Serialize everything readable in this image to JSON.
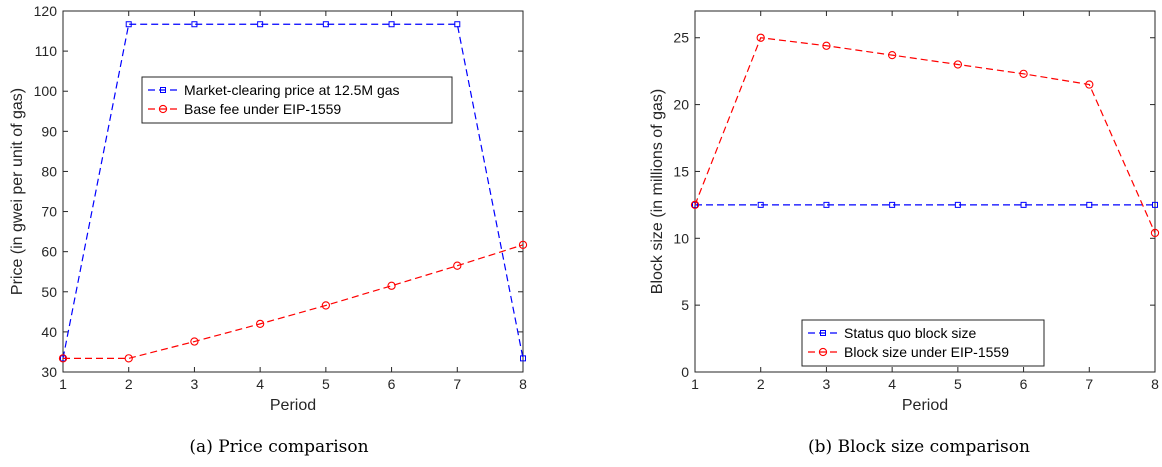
{
  "colors": {
    "blue": "#0000ff",
    "red": "#ff0000",
    "axis": "#262626"
  },
  "chart_data": [
    {
      "type": "line",
      "caption": "(a)  Price comparison",
      "xlabel": "Period",
      "ylabel": "Price (in gwei per unit of gas)",
      "xlim": [
        1,
        8
      ],
      "ylim": [
        30,
        120
      ],
      "xticks": [
        1,
        2,
        3,
        4,
        5,
        6,
        7,
        8
      ],
      "yticks": [
        30,
        40,
        50,
        60,
        70,
        80,
        90,
        100,
        110,
        120
      ],
      "legend_position": "upper-middle",
      "x": [
        1,
        2,
        3,
        4,
        5,
        6,
        7,
        8
      ],
      "series": [
        {
          "name": "Market-clearing price at 12.5M gas",
          "color": "#0000ff",
          "marker": "square",
          "values": [
            33.4,
            116.7,
            116.7,
            116.7,
            116.7,
            116.7,
            116.7,
            33.4
          ]
        },
        {
          "name": "Base fee under EIP-1559",
          "color": "#ff0000",
          "marker": "circle",
          "values": [
            33.4,
            33.4,
            37.6,
            42.0,
            46.6,
            51.5,
            56.5,
            61.7
          ]
        }
      ]
    },
    {
      "type": "line",
      "caption": "(b)  Block size comparison",
      "xlabel": "Period",
      "ylabel": "Block size (in millions of gas)",
      "xlim": [
        1,
        8
      ],
      "ylim": [
        0,
        27
      ],
      "xticks": [
        1,
        2,
        3,
        4,
        5,
        6,
        7,
        8
      ],
      "yticks": [
        0,
        5,
        10,
        15,
        20,
        25
      ],
      "legend_position": "bottom-middle",
      "x": [
        1,
        2,
        3,
        4,
        5,
        6,
        7,
        8
      ],
      "series": [
        {
          "name": "Status quo block size",
          "color": "#0000ff",
          "marker": "square",
          "values": [
            12.5,
            12.5,
            12.5,
            12.5,
            12.5,
            12.5,
            12.5,
            12.5
          ]
        },
        {
          "name": "Block size under EIP-1559",
          "color": "#ff0000",
          "marker": "circle",
          "values": [
            12.5,
            25.0,
            24.4,
            23.7,
            23.0,
            22.3,
            21.5,
            10.4
          ]
        }
      ]
    }
  ]
}
